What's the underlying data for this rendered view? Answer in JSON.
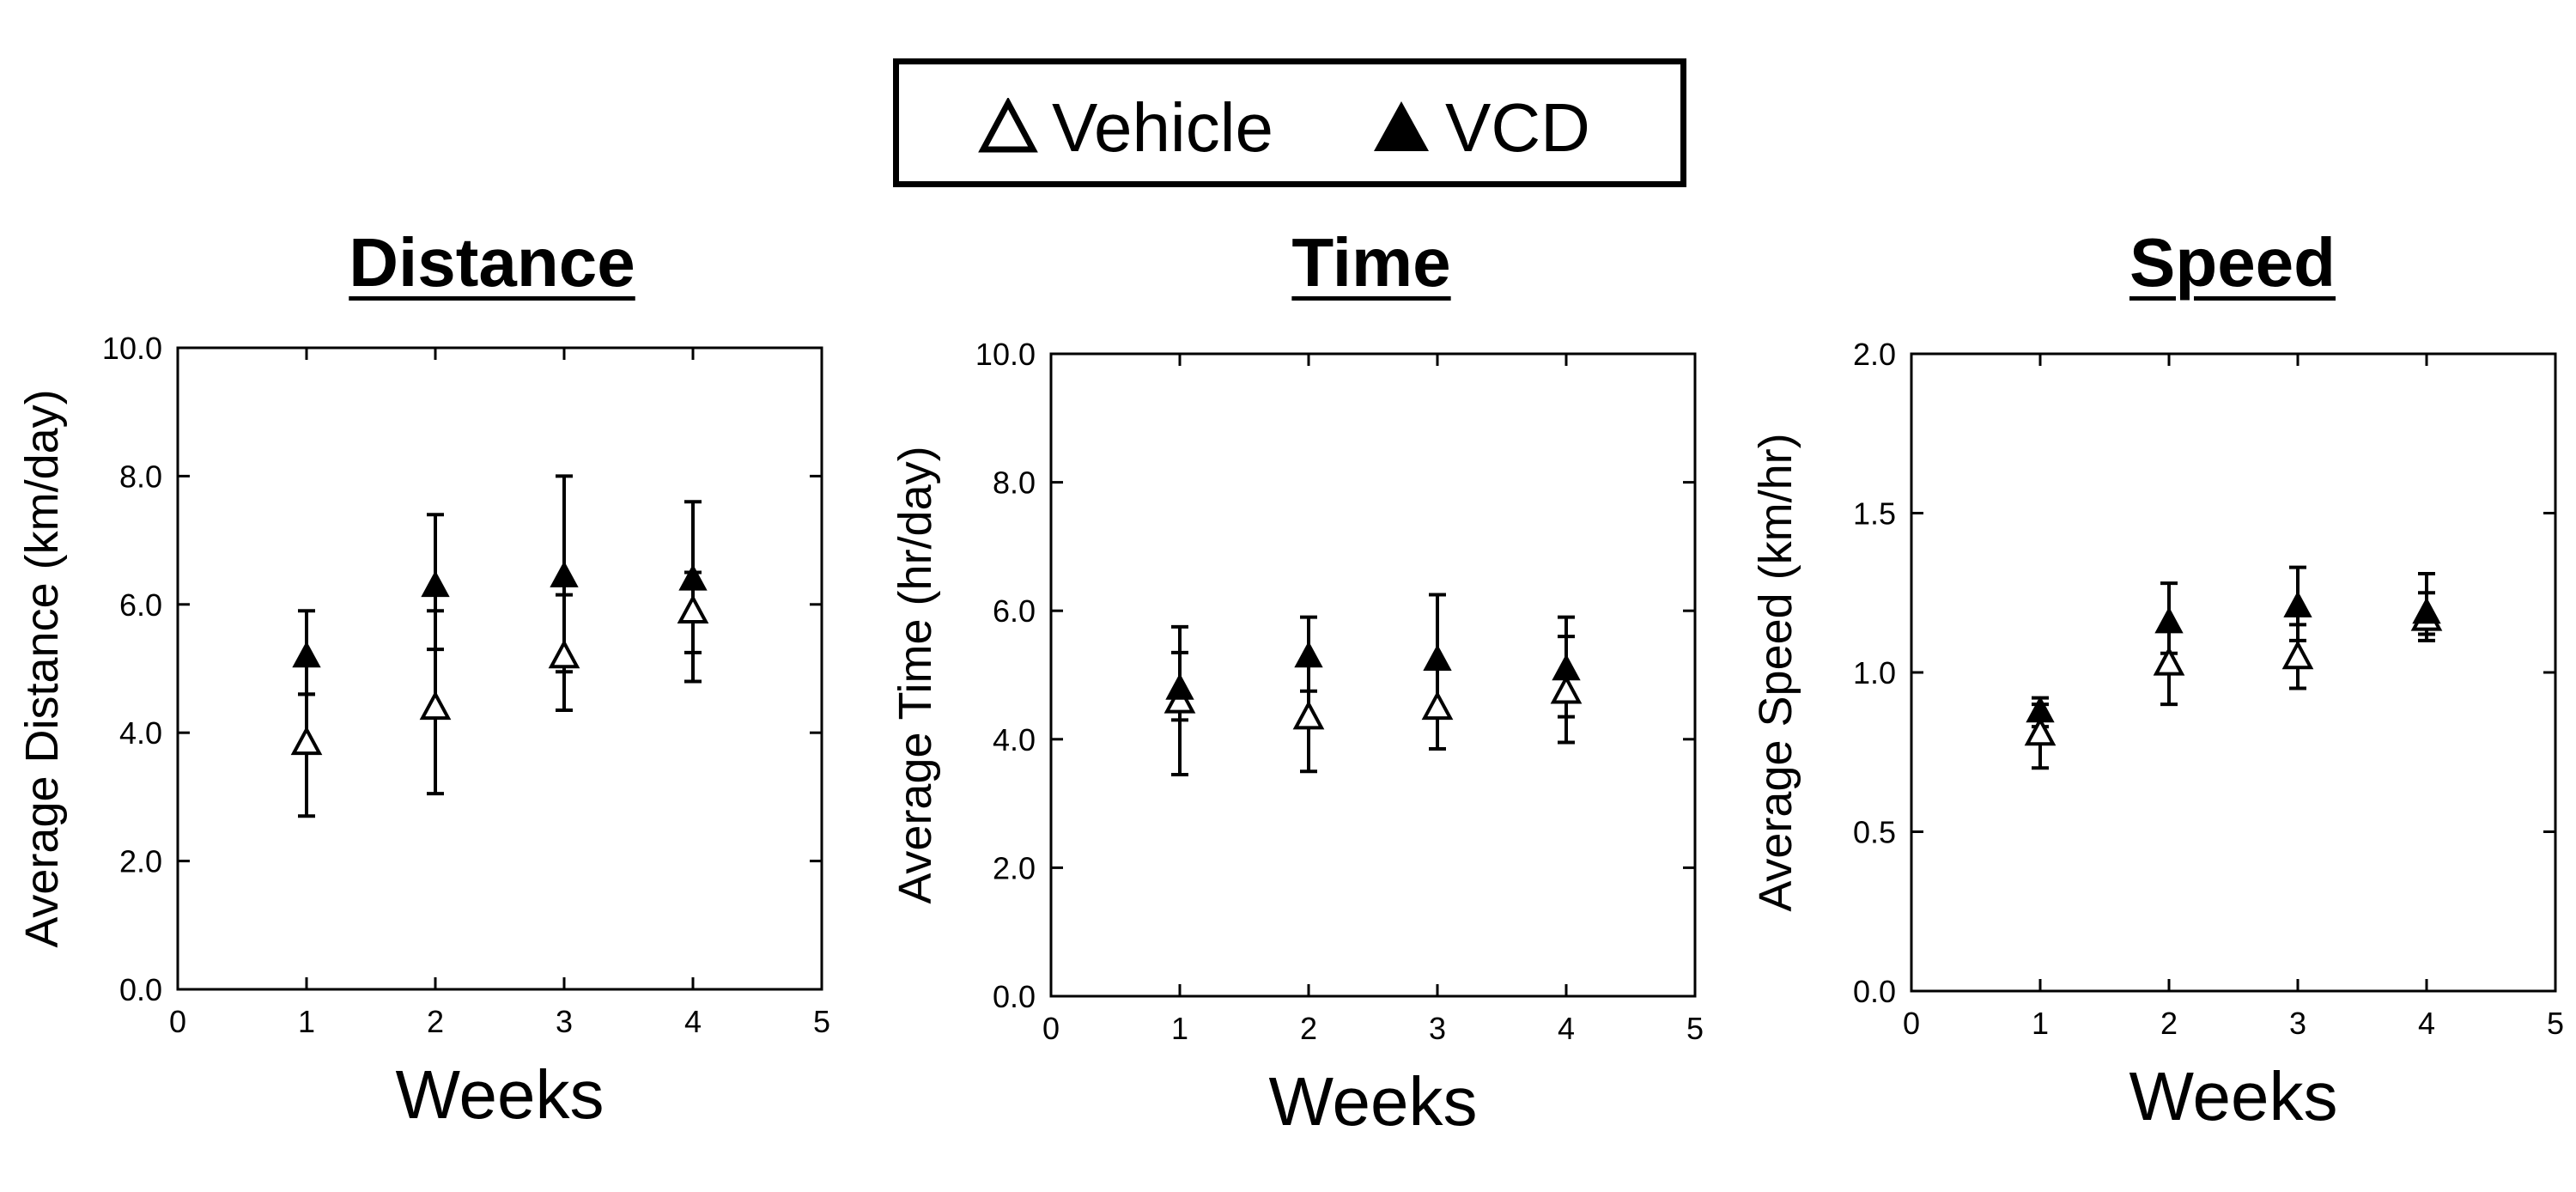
{
  "legend": {
    "vehicle_label": "Vehicle",
    "vcd_label": "VCD"
  },
  "chart_data": [
    {
      "type": "scatter",
      "title": "Distance",
      "xlabel": "Weeks",
      "ylabel": "Average Distance (km/day)",
      "xlim": [
        0,
        5
      ],
      "ylim": [
        0,
        10
      ],
      "xticks": [
        "0",
        "1",
        "2",
        "3",
        "4",
        "5"
      ],
      "yticks": [
        "0.0",
        "2.0",
        "4.0",
        "6.0",
        "8.0",
        "10.0"
      ],
      "x": [
        1,
        2,
        3,
        4
      ],
      "series": [
        {
          "name": "Vehicle",
          "marker": "open-triangle",
          "values": [
            3.85,
            4.4,
            5.2,
            5.9
          ],
          "err_low": [
            2.7,
            3.05,
            4.35,
            5.25
          ],
          "err_high": [
            4.6,
            5.9,
            6.15,
            6.5
          ]
        },
        {
          "name": "VCD",
          "marker": "filled-triangle",
          "values": [
            5.2,
            6.3,
            6.45,
            6.4
          ],
          "err_low": [
            4.6,
            5.3,
            4.95,
            4.8
          ],
          "err_high": [
            5.9,
            7.4,
            8.0,
            7.6
          ]
        }
      ]
    },
    {
      "type": "scatter",
      "title": "Time",
      "xlabel": "Weeks",
      "ylabel": "Average Time (hr/day)",
      "xlim": [
        0,
        5
      ],
      "ylim": [
        0,
        10
      ],
      "xticks": [
        "0",
        "1",
        "2",
        "3",
        "4",
        "5"
      ],
      "yticks": [
        "0.0",
        "2.0",
        "4.0",
        "6.0",
        "8.0",
        "10.0"
      ],
      "x": [
        1,
        2,
        3,
        4
      ],
      "series": [
        {
          "name": "Vehicle",
          "marker": "open-triangle",
          "values": [
            4.6,
            4.35,
            4.5,
            4.75
          ],
          "err_low": [
            3.45,
            3.5,
            3.85,
            3.95
          ],
          "err_high": [
            5.35,
            5.2,
            5.2,
            5.6
          ]
        },
        {
          "name": "VCD",
          "marker": "filled-triangle",
          "values": [
            4.8,
            5.3,
            5.25,
            5.1
          ],
          "err_low": [
            4.3,
            4.75,
            4.35,
            4.35
          ],
          "err_high": [
            5.75,
            5.9,
            6.25,
            5.9
          ]
        }
      ]
    },
    {
      "type": "scatter",
      "title": "Speed",
      "xlabel": "Weeks",
      "ylabel": "Average Speed (km/hr)",
      "xlim": [
        0,
        5
      ],
      "ylim": [
        0,
        2
      ],
      "xticks": [
        "0",
        "1",
        "2",
        "3",
        "4",
        "5"
      ],
      "yticks": [
        "0.0",
        "0.5",
        "1.0",
        "1.5",
        "2.0"
      ],
      "x": [
        1,
        2,
        3,
        4
      ],
      "series": [
        {
          "name": "Vehicle",
          "marker": "open-triangle",
          "values": [
            0.81,
            1.03,
            1.05,
            1.17
          ],
          "err_low": [
            0.7,
            0.9,
            0.95,
            1.1
          ],
          "err_high": [
            0.9,
            1.15,
            1.15,
            1.25
          ]
        },
        {
          "name": "VCD",
          "marker": "filled-triangle",
          "values": [
            0.88,
            1.16,
            1.21,
            1.19
          ],
          "err_low": [
            0.83,
            1.06,
            1.1,
            1.12
          ],
          "err_high": [
            0.92,
            1.28,
            1.33,
            1.31
          ]
        }
      ]
    }
  ]
}
